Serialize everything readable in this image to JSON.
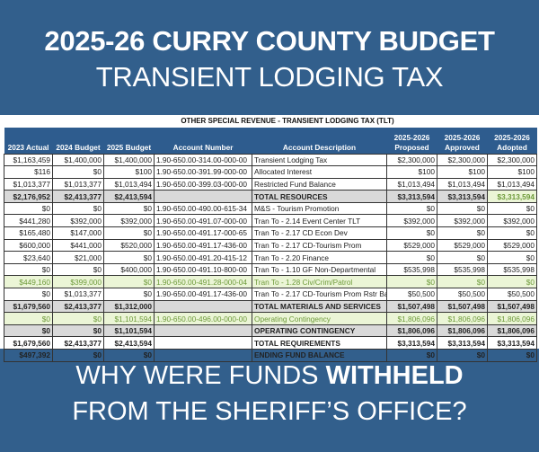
{
  "title": {
    "line1": "2025-26 CURRY COUNTY BUDGET",
    "line2": "TRANSIENT LODGING TAX"
  },
  "table": {
    "title": "OTHER SPECIAL REVENUE - TRANSIENT LODGING TAX (TLT)",
    "headers": [
      "2023 Actual",
      "2024 Budget",
      "2025 Budget",
      "Account Number",
      "Account Description",
      "2025-2026 Proposed",
      "2025-2026 Approved",
      "2025-2026 Adopted"
    ],
    "rows": [
      {
        "type": "normal",
        "cells": [
          "$1,163,459",
          "$1,400,000",
          "$1,400,000",
          "1.90-650.00-314.00-000-00",
          "Transient Lodging Tax",
          "$2,300,000",
          "$2,300,000",
          "$2,300,000"
        ]
      },
      {
        "type": "normal",
        "cells": [
          "$116",
          "$0",
          "$100",
          "1.90-650.00-391.99-000-00",
          "Allocated Interest",
          "$100",
          "$100",
          "$100"
        ]
      },
      {
        "type": "normal",
        "cells": [
          "$1,013,377",
          "$1,013,377",
          "$1,013,494",
          "1.90-650.00-399.03-000-00",
          "Restricted Fund Balance",
          "$1,013,494",
          "$1,013,494",
          "$1,013,494"
        ]
      },
      {
        "type": "total",
        "highlight_last": true,
        "cells": [
          "$2,176,952",
          "$2,413,377",
          "$2,413,594",
          "",
          "TOTAL RESOURCES",
          "$3,313,594",
          "$3,313,594",
          "$3,313,594"
        ]
      },
      {
        "type": "normal",
        "cells": [
          "$0",
          "$0",
          "$0",
          "1.90-650.00-490.00-615-34",
          "M&S - Tourism Promotion",
          "$0",
          "$0",
          "$0"
        ]
      },
      {
        "type": "normal",
        "cells": [
          "$441,280",
          "$392,000",
          "$392,000",
          "1.90-650.00-491.07-000-00",
          "Tran To - 2.14 Event Center TLT",
          "$392,000",
          "$392,000",
          "$392,000"
        ]
      },
      {
        "type": "normal",
        "cells": [
          "$165,480",
          "$147,000",
          "$0",
          "1.90-650.00-491.17-000-65",
          "Tran To - 2.17 CD Econ Dev",
          "$0",
          "$0",
          "$0"
        ]
      },
      {
        "type": "normal",
        "cells": [
          "$600,000",
          "$441,000",
          "$520,000",
          "1.90-650.00-491.17-436-00",
          "Tran To - 2.17 CD-Tourism Prom",
          "$529,000",
          "$529,000",
          "$529,000"
        ]
      },
      {
        "type": "normal",
        "cells": [
          "$23,640",
          "$21,000",
          "$0",
          "1.90-650.00-491.20-415-12",
          "Tran To - 2.20 Finance",
          "$0",
          "$0",
          "$0"
        ]
      },
      {
        "type": "normal",
        "cells": [
          "$0",
          "$0",
          "$400,000",
          "1.90-650.00-491.10-800-00",
          "Tran To - 1.10 GF Non-Departmental",
          "$535,998",
          "$535,998",
          "$535,998"
        ]
      },
      {
        "type": "green",
        "cells": [
          "$449,160",
          "$399,000",
          "$0",
          "1.90-650.00-491.28-000-04",
          "Tran To - 1.28 Civ/Crim/Patrol",
          "$0",
          "$0",
          "$0"
        ]
      },
      {
        "type": "normal",
        "cells": [
          "$0",
          "$1,013,377",
          "$0",
          "1.90-650.00-491.17-436-00",
          "Tran To - 2.17 CD-Tourism Prom Rstr Bal",
          "$50,500",
          "$50,500",
          "$50,500"
        ]
      },
      {
        "type": "total",
        "cells": [
          "$1,679,560",
          "$2,413,377",
          "$1,312,000",
          "",
          "TOTAL MATERIALS AND SERVICES",
          "$1,507,498",
          "$1,507,498",
          "$1,507,498"
        ]
      },
      {
        "type": "green",
        "cells": [
          "$0",
          "$0",
          "$1,101,594",
          "1.90-650.00-496.00-000-00",
          "Operating Contingency",
          "$1,806,096",
          "$1,806,096",
          "$1,806,096"
        ]
      },
      {
        "type": "total",
        "cells": [
          "$0",
          "$0",
          "$1,101,594",
          "",
          "OPERATING CONTINGENCY",
          "$1,806,096",
          "$1,806,096",
          "$1,806,096"
        ]
      },
      {
        "type": "bold",
        "cells": [
          "$1,679,560",
          "$2,413,377",
          "$2,413,594",
          "",
          "TOTAL REQUIREMENTS",
          "$3,313,594",
          "$3,313,594",
          "$3,313,594"
        ]
      },
      {
        "type": "bold",
        "cells": [
          "$497,392",
          "$0",
          "$0",
          "",
          "ENDING FUND BALANCE",
          "$0",
          "$0",
          "$0"
        ]
      }
    ]
  },
  "bottom": {
    "line1_pre": "WHY WERE FUNDS ",
    "line1_bold": "WITHHELD",
    "line2": "FROM THE SHERIFF’S OFFICE?"
  },
  "colors": {
    "background": "#325f8c",
    "header": "#2e5c8e",
    "total_row": "#d9d9d9",
    "highlight_row": "#ebf5d6",
    "highlight_text": "#6d9a3a"
  }
}
